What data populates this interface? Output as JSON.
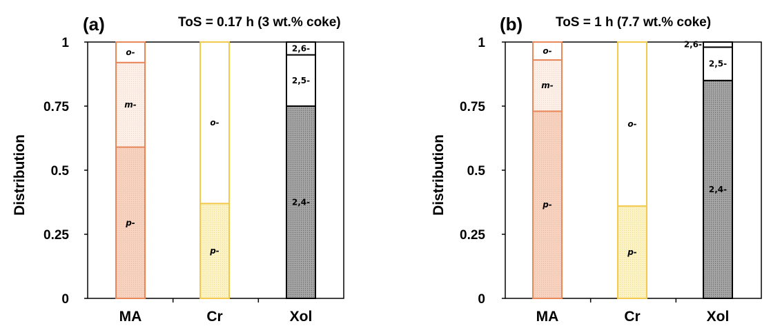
{
  "colors": {
    "ma_border": "#e8875a",
    "ma_p_fill": "#f6d3c0",
    "ma_m_fill": "#fbefe8",
    "cr_border": "#f2c94c",
    "cr_p_fill": "#fbf3c6",
    "xol_border": "#000000",
    "xol_fill": "#a6a6a6",
    "white": "#ffffff"
  },
  "chart_data": [
    {
      "type": "bar",
      "stacked": true,
      "panel_label": "(a)",
      "title": "ToS = 0.17 h (3 wt.% coke)",
      "ylabel": "Distribution",
      "xlabel": "",
      "ylim": [
        0,
        1
      ],
      "yticks": [
        "0",
        "0.25",
        "0.5",
        "0.75",
        "1"
      ],
      "categories": [
        "MA",
        "Cr",
        "Xol"
      ],
      "bars": [
        {
          "category": "MA",
          "segments": [
            {
              "name": "p-",
              "value": 0.59
            },
            {
              "name": "m-",
              "value": 0.33
            },
            {
              "name": "o-",
              "value": 0.08
            }
          ]
        },
        {
          "category": "Cr",
          "segments": [
            {
              "name": "p-",
              "value": 0.37
            },
            {
              "name": "o-",
              "value": 0.63
            }
          ]
        },
        {
          "category": "Xol",
          "segments": [
            {
              "name": "2,4-",
              "value": 0.75
            },
            {
              "name": "2,5-",
              "value": 0.2
            },
            {
              "name": "2,6-",
              "value": 0.05
            }
          ]
        }
      ]
    },
    {
      "type": "bar",
      "stacked": true,
      "panel_label": "(b)",
      "title": "ToS = 1 h (7.7 wt.% coke)",
      "ylabel": "Distribution",
      "xlabel": "",
      "ylim": [
        0,
        1
      ],
      "yticks": [
        "0",
        "0.25",
        "0.5",
        "0.75",
        "1"
      ],
      "categories": [
        "MA",
        "Cr",
        "Xol"
      ],
      "bars": [
        {
          "category": "MA",
          "segments": [
            {
              "name": "p-",
              "value": 0.73
            },
            {
              "name": "m-",
              "value": 0.2
            },
            {
              "name": "o-",
              "value": 0.07
            }
          ]
        },
        {
          "category": "Cr",
          "segments": [
            {
              "name": "p-",
              "value": 0.36
            },
            {
              "name": "o-",
              "value": 0.64
            }
          ]
        },
        {
          "category": "Xol",
          "segments": [
            {
              "name": "2,4-",
              "value": 0.85
            },
            {
              "name": "2,5-",
              "value": 0.13
            },
            {
              "name": "2,6-",
              "value": 0.02
            }
          ]
        }
      ]
    }
  ]
}
